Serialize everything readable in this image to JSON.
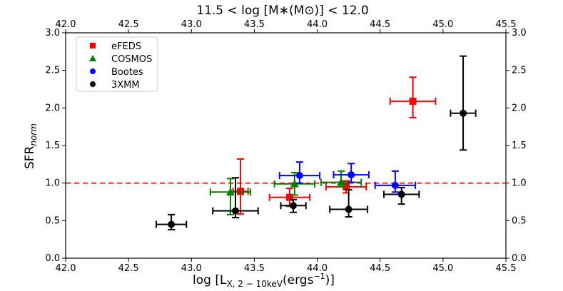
{
  "chart_data": {
    "type": "scatter",
    "title": "11.5 < log [M∗(M⊙)] < 12.0",
    "xlabel": "log [L",
    "xlabel_sub": "X, 2 − 10keV",
    "xlabel_unit": "(ergs",
    "xlabel_sup": "−1",
    "xlabel_close": ")]",
    "ylabel": "SFR",
    "ylabel_sub": "norm",
    "xlim": [
      42.0,
      45.5
    ],
    "ylim": [
      0.0,
      3.0
    ],
    "xticks": [
      "42.0",
      "42.5",
      "43.0",
      "43.5",
      "44.0",
      "44.5",
      "45.0",
      "45.5"
    ],
    "yticks": [
      "0.0",
      "0.5",
      "1.0",
      "1.5",
      "2.0",
      "2.5",
      "3.0"
    ],
    "reference_line": {
      "y": 1.0,
      "style": "dashed",
      "color": "#ff0000"
    },
    "legend_position": "upper-left",
    "series": [
      {
        "name": "eFEDS",
        "marker": "square",
        "color": "#ff0000",
        "points": [
          {
            "x": 43.39,
            "y": 0.89,
            "xerr": 0.06,
            "yerr_low": 0.3,
            "yerr_high": 0.43
          },
          {
            "x": 43.78,
            "y": 0.81,
            "xerr": 0.16,
            "yerr_low": 0.12,
            "yerr_high": 0.12
          },
          {
            "x": 44.23,
            "y": 0.95,
            "xerr": 0.16,
            "yerr_low": 0.08,
            "yerr_high": 0.08
          },
          {
            "x": 44.76,
            "y": 2.09,
            "xerr": 0.18,
            "yerr_low": 0.22,
            "yerr_high": 0.32
          }
        ]
      },
      {
        "name": "COSMOS",
        "marker": "triangle",
        "color": "#008000",
        "points": [
          {
            "x": 43.31,
            "y": 0.88,
            "xerr": 0.16,
            "yerr_low": 0.3,
            "yerr_high": 0.18
          },
          {
            "x": 43.82,
            "y": 0.99,
            "xerr": 0.16,
            "yerr_low": 0.15,
            "yerr_high": 0.15
          },
          {
            "x": 44.19,
            "y": 1.01,
            "xerr": 0.16,
            "yerr_low": 0.06,
            "yerr_high": 0.15
          }
        ]
      },
      {
        "name": "Bootes",
        "marker": "circle",
        "color": "#0000ff",
        "points": [
          {
            "x": 43.86,
            "y": 1.1,
            "xerr": 0.16,
            "yerr_low": 0.1,
            "yerr_high": 0.18
          },
          {
            "x": 44.27,
            "y": 1.11,
            "xerr": 0.14,
            "yerr_low": 0.1,
            "yerr_high": 0.15
          },
          {
            "x": 44.62,
            "y": 0.97,
            "xerr": 0.16,
            "yerr_low": 0.09,
            "yerr_high": 0.19
          }
        ]
      },
      {
        "name": "3XMM",
        "marker": "circle",
        "color": "#000000",
        "points": [
          {
            "x": 42.84,
            "y": 0.45,
            "xerr": 0.12,
            "yerr_low": 0.07,
            "yerr_high": 0.13
          },
          {
            "x": 43.35,
            "y": 0.63,
            "xerr": 0.18,
            "yerr_low": 0.09,
            "yerr_high": 0.44
          },
          {
            "x": 43.81,
            "y": 0.7,
            "xerr": 0.1,
            "yerr_low": 0.09,
            "yerr_high": 0.08
          },
          {
            "x": 44.25,
            "y": 0.65,
            "xerr": 0.15,
            "yerr_low": 0.1,
            "yerr_high": 0.26
          },
          {
            "x": 44.67,
            "y": 0.85,
            "xerr": 0.14,
            "yerr_low": 0.13,
            "yerr_high": 0.09
          },
          {
            "x": 45.16,
            "y": 1.93,
            "xerr": 0.1,
            "yerr_low": 0.49,
            "yerr_high": 0.76
          }
        ]
      }
    ]
  }
}
